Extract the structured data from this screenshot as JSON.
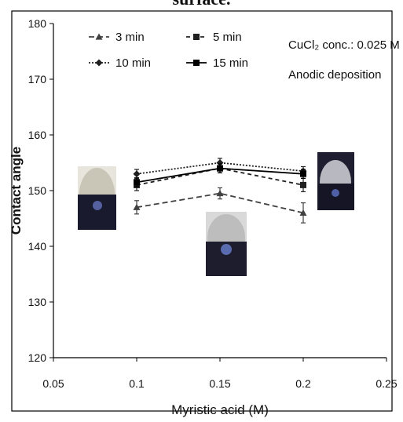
{
  "header_fragment": "surface.",
  "chart_data": {
    "type": "line",
    "xlabel": "Myristic acid  (M)",
    "ylabel": "Contact angle",
    "xlim": [
      0.05,
      0.25
    ],
    "ylim": [
      120,
      180
    ],
    "x_ticks": [
      "0.05",
      "0.1",
      "0.15",
      "0.2",
      "0.25"
    ],
    "y_ticks": [
      "120",
      "130",
      "140",
      "150",
      "160",
      "170",
      "180"
    ],
    "x": [
      0.1,
      0.15,
      0.2
    ],
    "series": [
      {
        "name": "3 min",
        "values": [
          147.0,
          149.5,
          146.0
        ],
        "errors": [
          1.2,
          1.0,
          1.8
        ],
        "marker": "triangle",
        "dash": "7,4",
        "color": "#404040"
      },
      {
        "name": "5 min",
        "values": [
          151.0,
          154.0,
          151.0
        ],
        "errors": [
          1.0,
          0.8,
          1.2
        ],
        "marker": "square",
        "dash": "5,4",
        "color": "#202020"
      },
      {
        "name": "10 min",
        "values": [
          153.0,
          155.0,
          153.5
        ],
        "errors": [
          0.8,
          0.8,
          0.8
        ],
        "marker": "diamond",
        "dash": "2,2",
        "color": "#202020"
      },
      {
        "name": "15 min",
        "values": [
          151.5,
          154.0,
          153.0
        ],
        "errors": [
          0.8,
          0.8,
          0.8
        ],
        "marker": "square",
        "dash": "",
        "color": "#000000"
      }
    ],
    "annotations": [
      "CuCl₂ conc.: 0.025 M",
      "Anodic deposition"
    ],
    "grid": false,
    "legend_position": "top-left"
  }
}
